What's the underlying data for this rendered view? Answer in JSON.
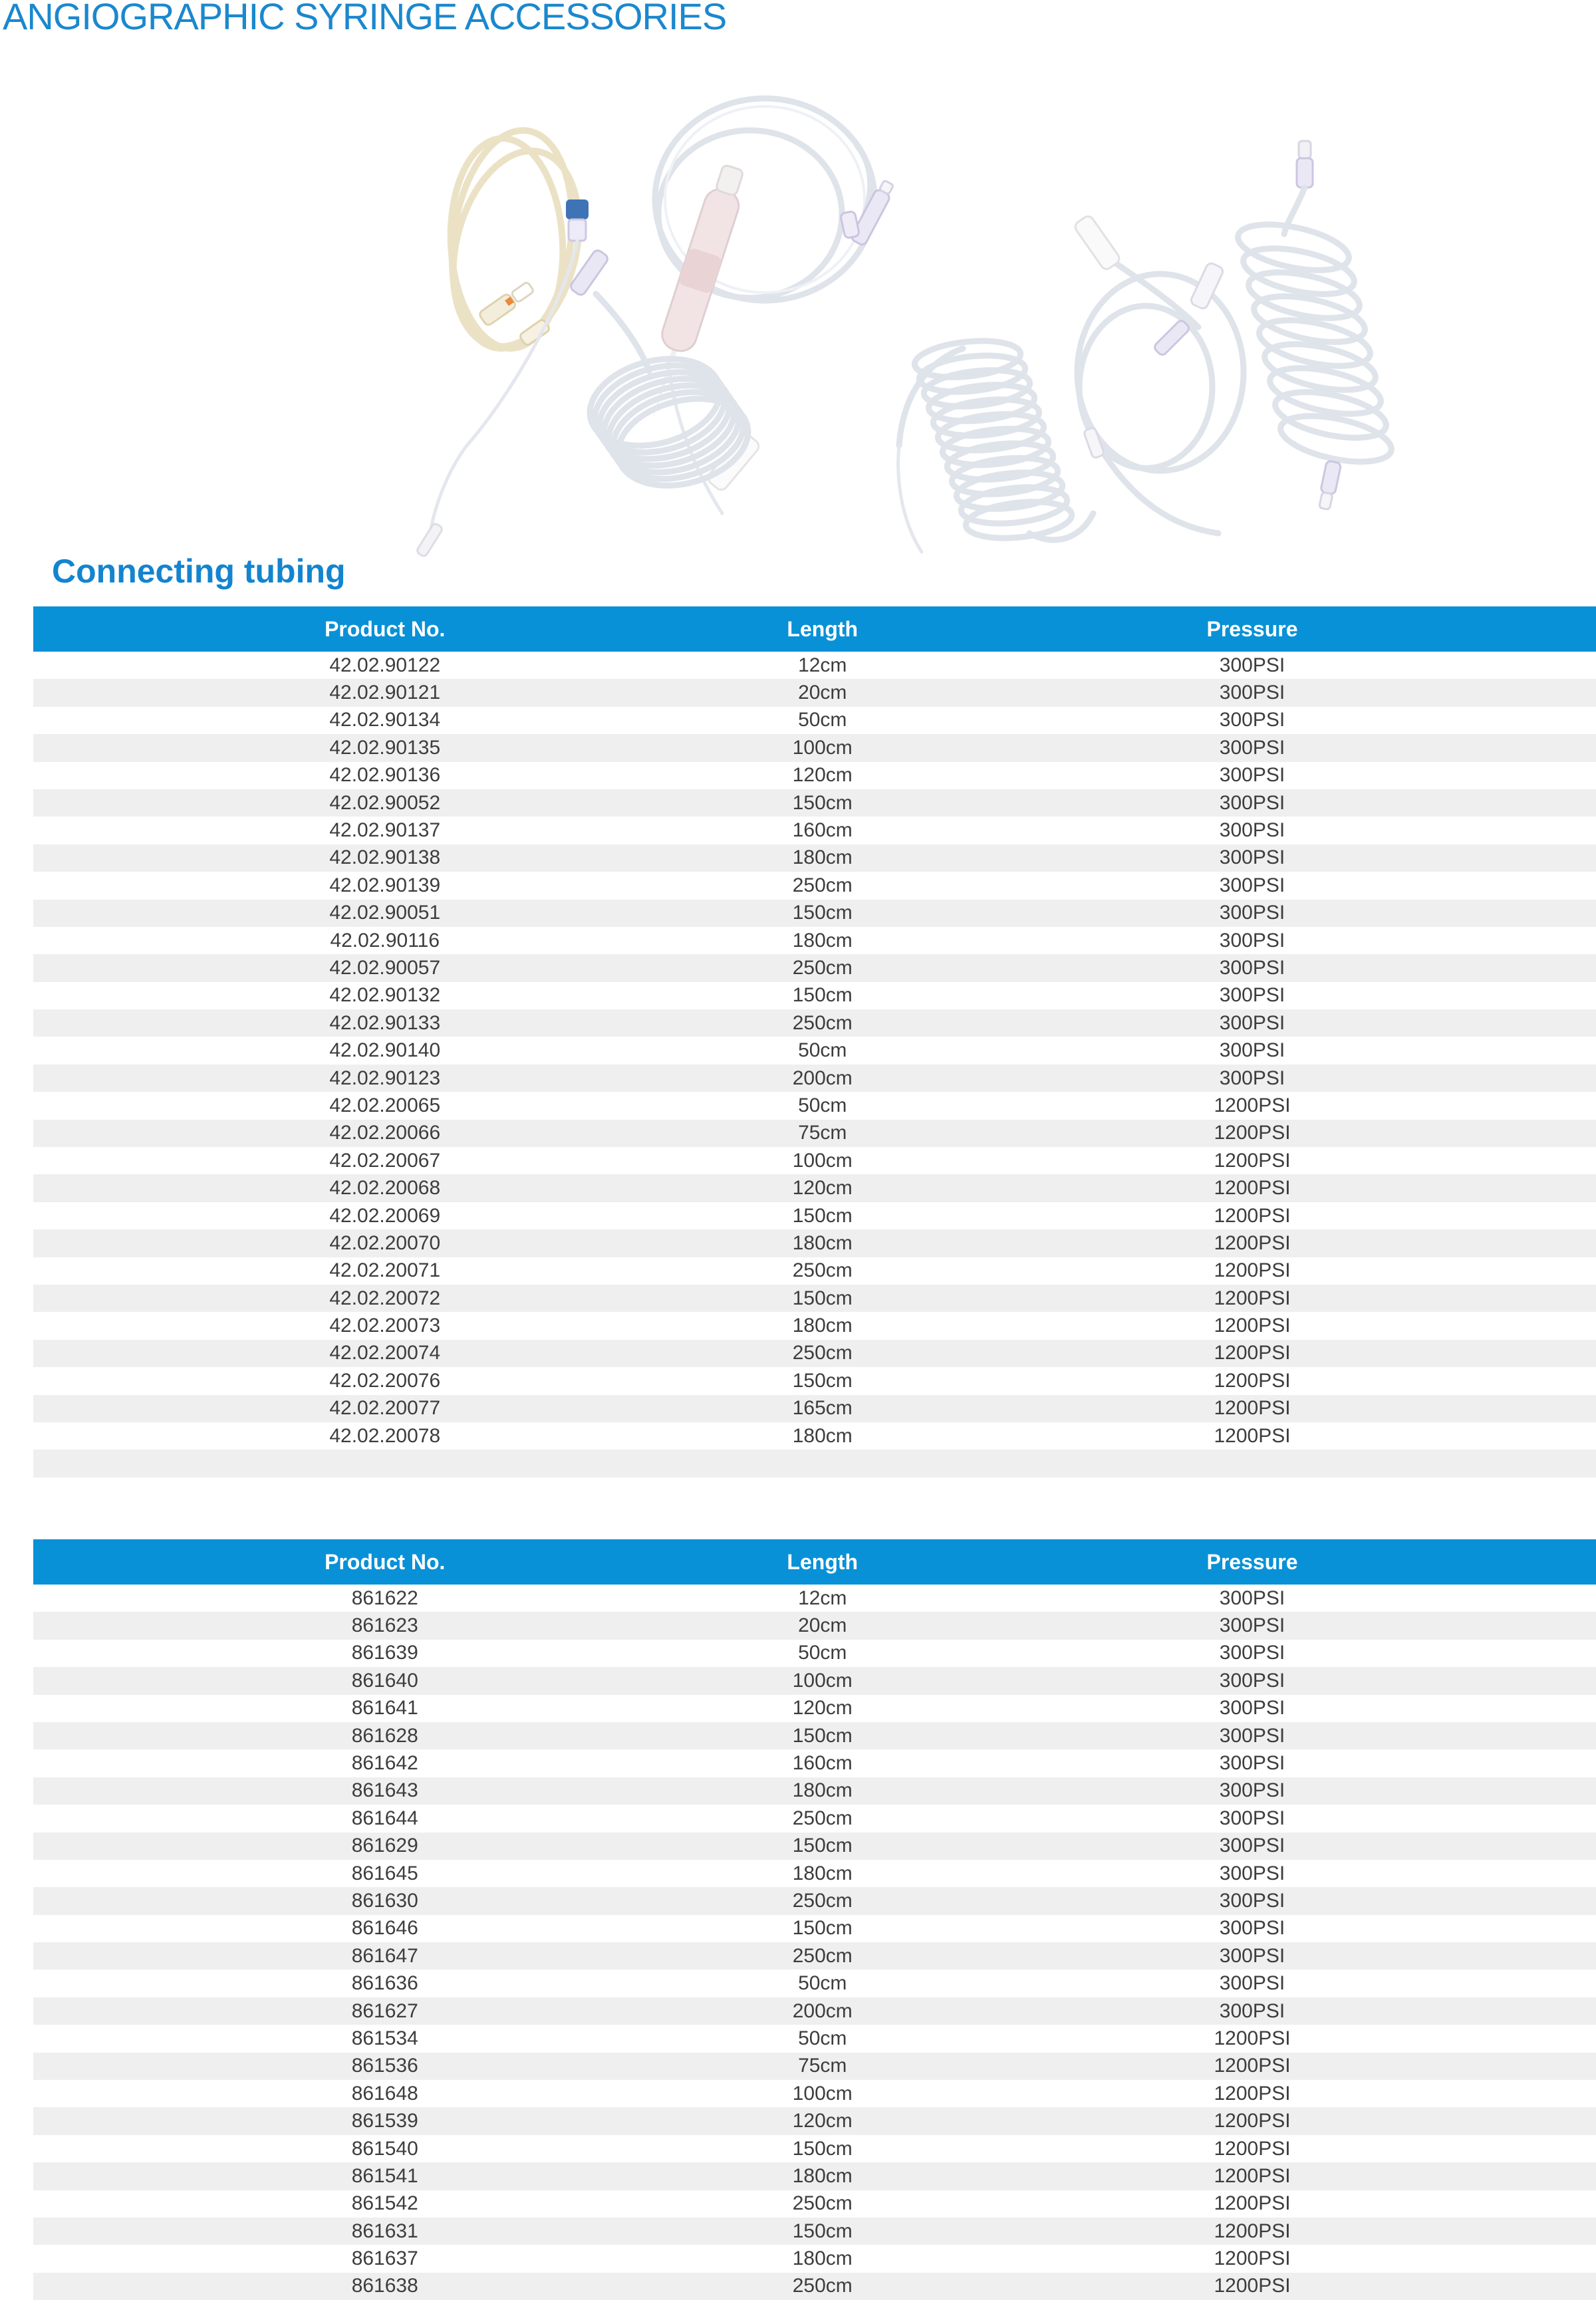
{
  "page": {
    "title": "ANGIOGRAPHIC SYRINGE ACCESSORIES",
    "section_heading": "Connecting tubing"
  },
  "colors": {
    "brand_blue_bar": "#0991d7",
    "title_blue": "#1a88ce",
    "heading_blue": "#1384cf",
    "row_alt_gray": "#efefef",
    "body_text": "#3d3d3d"
  },
  "photos": {
    "items": [
      {
        "name": "cream-coiled-tubing-set"
      },
      {
        "name": "drip-chamber-infusion-set"
      },
      {
        "name": "spiral-coil-tubing"
      },
      {
        "name": "y-connector-coil-tubing-blue-luer"
      },
      {
        "name": "tubing-set-with-clamps"
      },
      {
        "name": "coiled-tubing-with-connectors"
      }
    ]
  },
  "tables": [
    {
      "headers": [
        "Product No.",
        "Length",
        "Pressure"
      ],
      "trailing_empty_rows": 1,
      "rows": [
        [
          "42.02.90122",
          "12cm",
          "300PSI"
        ],
        [
          "42.02.90121",
          "20cm",
          "300PSI"
        ],
        [
          "42.02.90134",
          "50cm",
          "300PSI"
        ],
        [
          "42.02.90135",
          "100cm",
          "300PSI"
        ],
        [
          "42.02.90136",
          "120cm",
          "300PSI"
        ],
        [
          "42.02.90052",
          "150cm",
          "300PSI"
        ],
        [
          "42.02.90137",
          "160cm",
          "300PSI"
        ],
        [
          "42.02.90138",
          "180cm",
          "300PSI"
        ],
        [
          "42.02.90139",
          "250cm",
          "300PSI"
        ],
        [
          "42.02.90051",
          "150cm",
          "300PSI"
        ],
        [
          "42.02.90116",
          "180cm",
          "300PSI"
        ],
        [
          "42.02.90057",
          "250cm",
          "300PSI"
        ],
        [
          "42.02.90132",
          "150cm",
          "300PSI"
        ],
        [
          "42.02.90133",
          "250cm",
          "300PSI"
        ],
        [
          "42.02.90140",
          "50cm",
          "300PSI"
        ],
        [
          "42.02.90123",
          "200cm",
          "300PSI"
        ],
        [
          "42.02.20065",
          "50cm",
          "1200PSI"
        ],
        [
          "42.02.20066",
          "75cm",
          "1200PSI"
        ],
        [
          "42.02.20067",
          "100cm",
          "1200PSI"
        ],
        [
          "42.02.20068",
          "120cm",
          "1200PSI"
        ],
        [
          "42.02.20069",
          "150cm",
          "1200PSI"
        ],
        [
          "42.02.20070",
          "180cm",
          "1200PSI"
        ],
        [
          "42.02.20071",
          "250cm",
          "1200PSI"
        ],
        [
          "42.02.20072",
          "150cm",
          "1200PSI"
        ],
        [
          "42.02.20073",
          "180cm",
          "1200PSI"
        ],
        [
          "42.02.20074",
          "250cm",
          "1200PSI"
        ],
        [
          "42.02.20076",
          "150cm",
          "1200PSI"
        ],
        [
          "42.02.20077",
          "165cm",
          "1200PSI"
        ],
        [
          "42.02.20078",
          "180cm",
          "1200PSI"
        ]
      ]
    },
    {
      "headers": [
        "Product No.",
        "Length",
        "Pressure"
      ],
      "trailing_empty_rows": 0,
      "rows": [
        [
          "861622",
          "12cm",
          "300PSI"
        ],
        [
          "861623",
          "20cm",
          "300PSI"
        ],
        [
          "861639",
          "50cm",
          "300PSI"
        ],
        [
          "861640",
          "100cm",
          "300PSI"
        ],
        [
          "861641",
          "120cm",
          "300PSI"
        ],
        [
          "861628",
          "150cm",
          "300PSI"
        ],
        [
          "861642",
          "160cm",
          "300PSI"
        ],
        [
          "861643",
          "180cm",
          "300PSI"
        ],
        [
          "861644",
          "250cm",
          "300PSI"
        ],
        [
          "861629",
          "150cm",
          "300PSI"
        ],
        [
          "861645",
          "180cm",
          "300PSI"
        ],
        [
          "861630",
          "250cm",
          "300PSI"
        ],
        [
          "861646",
          "150cm",
          "300PSI"
        ],
        [
          "861647",
          "250cm",
          "300PSI"
        ],
        [
          "861636",
          "50cm",
          "300PSI"
        ],
        [
          "861627",
          "200cm",
          "300PSI"
        ],
        [
          "861534",
          "50cm",
          "1200PSI"
        ],
        [
          "861536",
          "75cm",
          "1200PSI"
        ],
        [
          "861648",
          "100cm",
          "1200PSI"
        ],
        [
          "861539",
          "120cm",
          "1200PSI"
        ],
        [
          "861540",
          "150cm",
          "1200PSI"
        ],
        [
          "861541",
          "180cm",
          "1200PSI"
        ],
        [
          "861542",
          "250cm",
          "1200PSI"
        ],
        [
          "861631",
          "150cm",
          "1200PSI"
        ],
        [
          "861637",
          "180cm",
          "1200PSI"
        ],
        [
          "861638",
          "250cm",
          "1200PSI"
        ]
      ]
    }
  ]
}
